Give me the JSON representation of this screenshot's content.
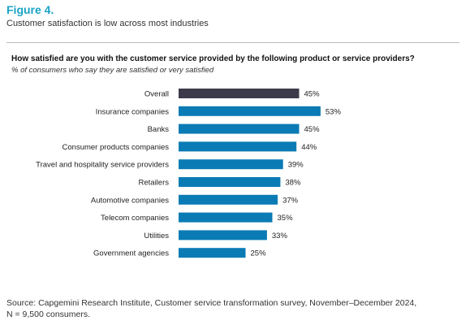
{
  "figure": {
    "label": "Figure 4.",
    "caption": "Customer satisfaction is low across most industries"
  },
  "question": "How satisfied are you with the customer service provided by the following product or service providers?",
  "subquestion": "% of consumers who say they are satisfied or very satisfied",
  "source_line1": "Source: Capgemini Research Institute, Customer service transformation survey, November–December 2024,",
  "source_line2": "N = 9,500 consumers.",
  "colors": {
    "accent": "#1aa3c8",
    "overall_bar": "#3c3a4a",
    "bar": "#0a7bb5"
  },
  "chart_data": {
    "type": "bar",
    "orientation": "horizontal",
    "categories": [
      "Overall",
      "Insurance companies",
      "Banks",
      "Consumer products companies",
      "Travel and hospitality service providers",
      "Retailers",
      "Automotive companies",
      "Telecom companies",
      "Utilities",
      "Government agencies"
    ],
    "values": [
      45,
      53,
      45,
      44,
      39,
      38,
      37,
      35,
      33,
      25
    ],
    "value_labels": [
      "45%",
      "53%",
      "45%",
      "44%",
      "39%",
      "38%",
      "37%",
      "35%",
      "33%",
      "25%"
    ],
    "title": "How satisfied are you with the customer service provided by the following product or service providers?",
    "subtitle": "% of consumers who say they are satisfied or very satisfied",
    "xlim": [
      0,
      55
    ],
    "grid": false,
    "legend": "none"
  }
}
